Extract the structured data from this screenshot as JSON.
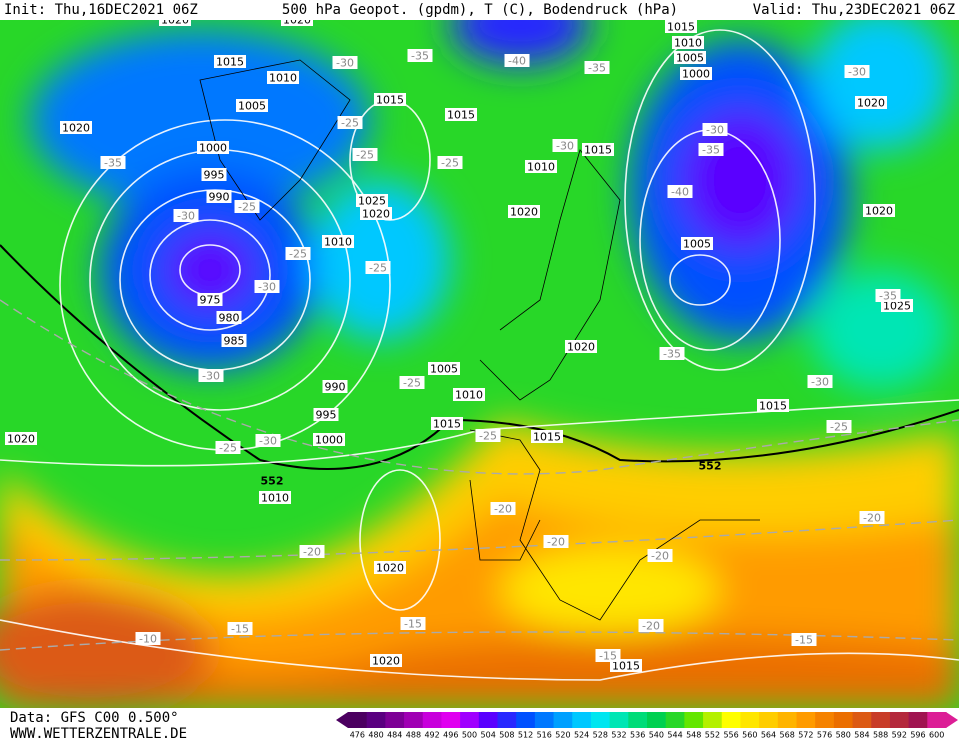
{
  "header": {
    "init": "Init: Thu,16DEC2021 06Z",
    "title": "500 hPa Geopot. (gpdm), T (C), Bodendruck (hPa)",
    "valid": "Valid: Thu,23DEC2021 06Z"
  },
  "footer": {
    "source": "Data: GFS C00 0.500°",
    "site": "WWW.WETTERZENTRALE.DE"
  },
  "map": {
    "isobar_labels": [
      "1020",
      "1020",
      "1015",
      "1010",
      "1005",
      "1015",
      "1015",
      "1020",
      "1000",
      "995",
      "990",
      "1025",
      "1020",
      "1010",
      "975",
      "980",
      "985",
      "990",
      "995",
      "1000",
      "1005",
      "1010",
      "1015",
      "1015",
      "1010",
      "1020",
      "1015",
      "1020",
      "1015",
      "1010",
      "1005",
      "1000",
      "1020",
      "1020",
      "1005",
      "1025",
      "1015",
      "1020",
      "1010",
      "1020",
      "1020",
      "1015"
    ],
    "height_labels": [
      "552",
      "552"
    ],
    "temperature_labels": [
      "-35",
      "-30",
      "-40",
      "-35",
      "-30",
      "-25",
      "-25",
      "-25",
      "-30",
      "-35",
      "-30",
      "-25",
      "-25",
      "-25",
      "-30",
      "-30",
      "-35",
      "-40",
      "-35",
      "-35",
      "-30",
      "-25",
      "-30",
      "-25",
      "-25",
      "-25",
      "-30",
      "-20",
      "-20",
      "-20",
      "-20",
      "-20",
      "-15",
      "-10",
      "-15",
      "-20",
      "-15",
      "-15"
    ]
  },
  "colorbar": {
    "labels": [
      476,
      480,
      484,
      488,
      492,
      496,
      500,
      504,
      508,
      512,
      516,
      520,
      524,
      528,
      532,
      536,
      540,
      544,
      548,
      552,
      556,
      560,
      564,
      568,
      572,
      576,
      580,
      584,
      588,
      592,
      596,
      600
    ],
    "colors": [
      "#4b0060",
      "#5a0080",
      "#7d0096",
      "#a000b4",
      "#c800dc",
      "#e000f0",
      "#a000ff",
      "#5a00ff",
      "#2828ff",
      "#0050ff",
      "#0078ff",
      "#00a0ff",
      "#00c8ff",
      "#00e6f0",
      "#00e6b4",
      "#00dc78",
      "#00d050",
      "#28d728",
      "#64e600",
      "#b4f000",
      "#ffff00",
      "#ffe600",
      "#ffcd00",
      "#ffb400",
      "#ff9b00",
      "#f58200",
      "#eb6e00",
      "#dc5a14",
      "#c83c28",
      "#b4283c",
      "#a01450",
      "#dc1e96"
    ]
  }
}
